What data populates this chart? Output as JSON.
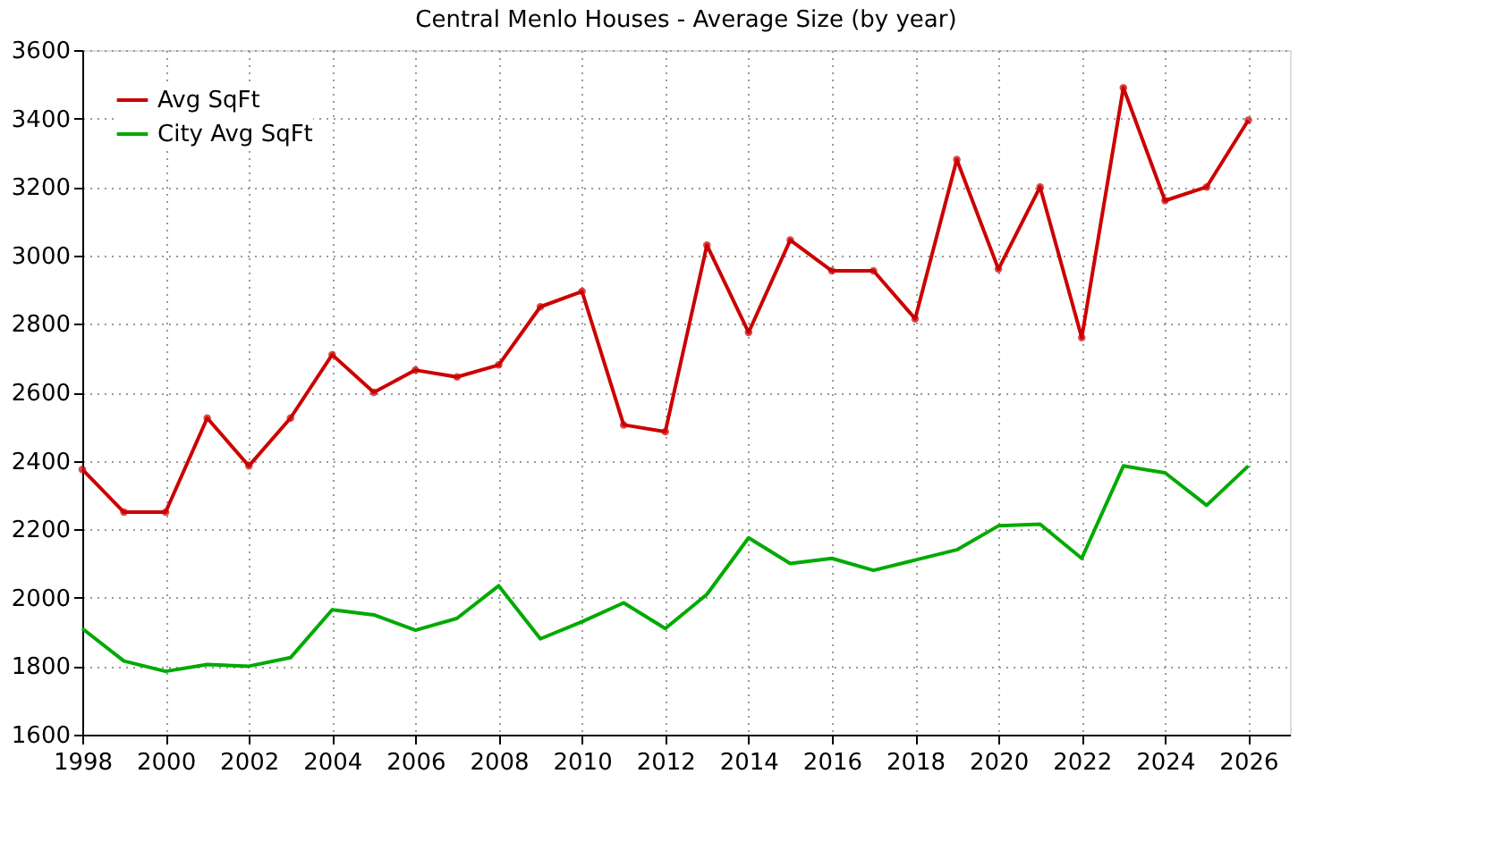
{
  "chart_data": {
    "type": "line",
    "title": "Central Menlo Houses - Average Size (by year)",
    "x": [
      1998,
      1999,
      2000,
      2001,
      2002,
      2003,
      2004,
      2005,
      2006,
      2007,
      2008,
      2009,
      2010,
      2011,
      2012,
      2013,
      2014,
      2015,
      2016,
      2017,
      2018,
      2019,
      2020,
      2021,
      2022,
      2023,
      2024,
      2025,
      2026
    ],
    "series": [
      {
        "name": "Avg SqFt",
        "color": "#cc0000",
        "marker": "circle",
        "values": [
          2375,
          2250,
          2250,
          2525,
          2385,
          2525,
          2710,
          2600,
          2665,
          2645,
          2680,
          2850,
          2895,
          2505,
          2485,
          3030,
          2775,
          3045,
          2955,
          2955,
          2815,
          3280,
          2960,
          3200,
          2760,
          3490,
          3160,
          3200,
          3395
        ]
      },
      {
        "name": "City Avg SqFt",
        "color": "#00aa00",
        "marker": "none",
        "values": [
          1910,
          1815,
          1785,
          1805,
          1800,
          1825,
          1965,
          1950,
          1905,
          1940,
          2035,
          1880,
          1930,
          1985,
          1910,
          2010,
          2175,
          2100,
          2115,
          2080,
          2110,
          2140,
          2210,
          2215,
          2115,
          2385,
          2365,
          2270,
          2385
        ]
      }
    ],
    "xlim": [
      1998,
      2027
    ],
    "xticks": [
      1998,
      2000,
      2002,
      2004,
      2006,
      2008,
      2010,
      2012,
      2014,
      2016,
      2018,
      2020,
      2022,
      2024,
      2026
    ],
    "ylim": [
      1600,
      3600
    ],
    "yticks": [
      1600,
      1800,
      2000,
      2200,
      2400,
      2600,
      2800,
      3000,
      3200,
      3400,
      3600
    ],
    "grid": true,
    "legend": "top left",
    "line_style": "solid"
  }
}
